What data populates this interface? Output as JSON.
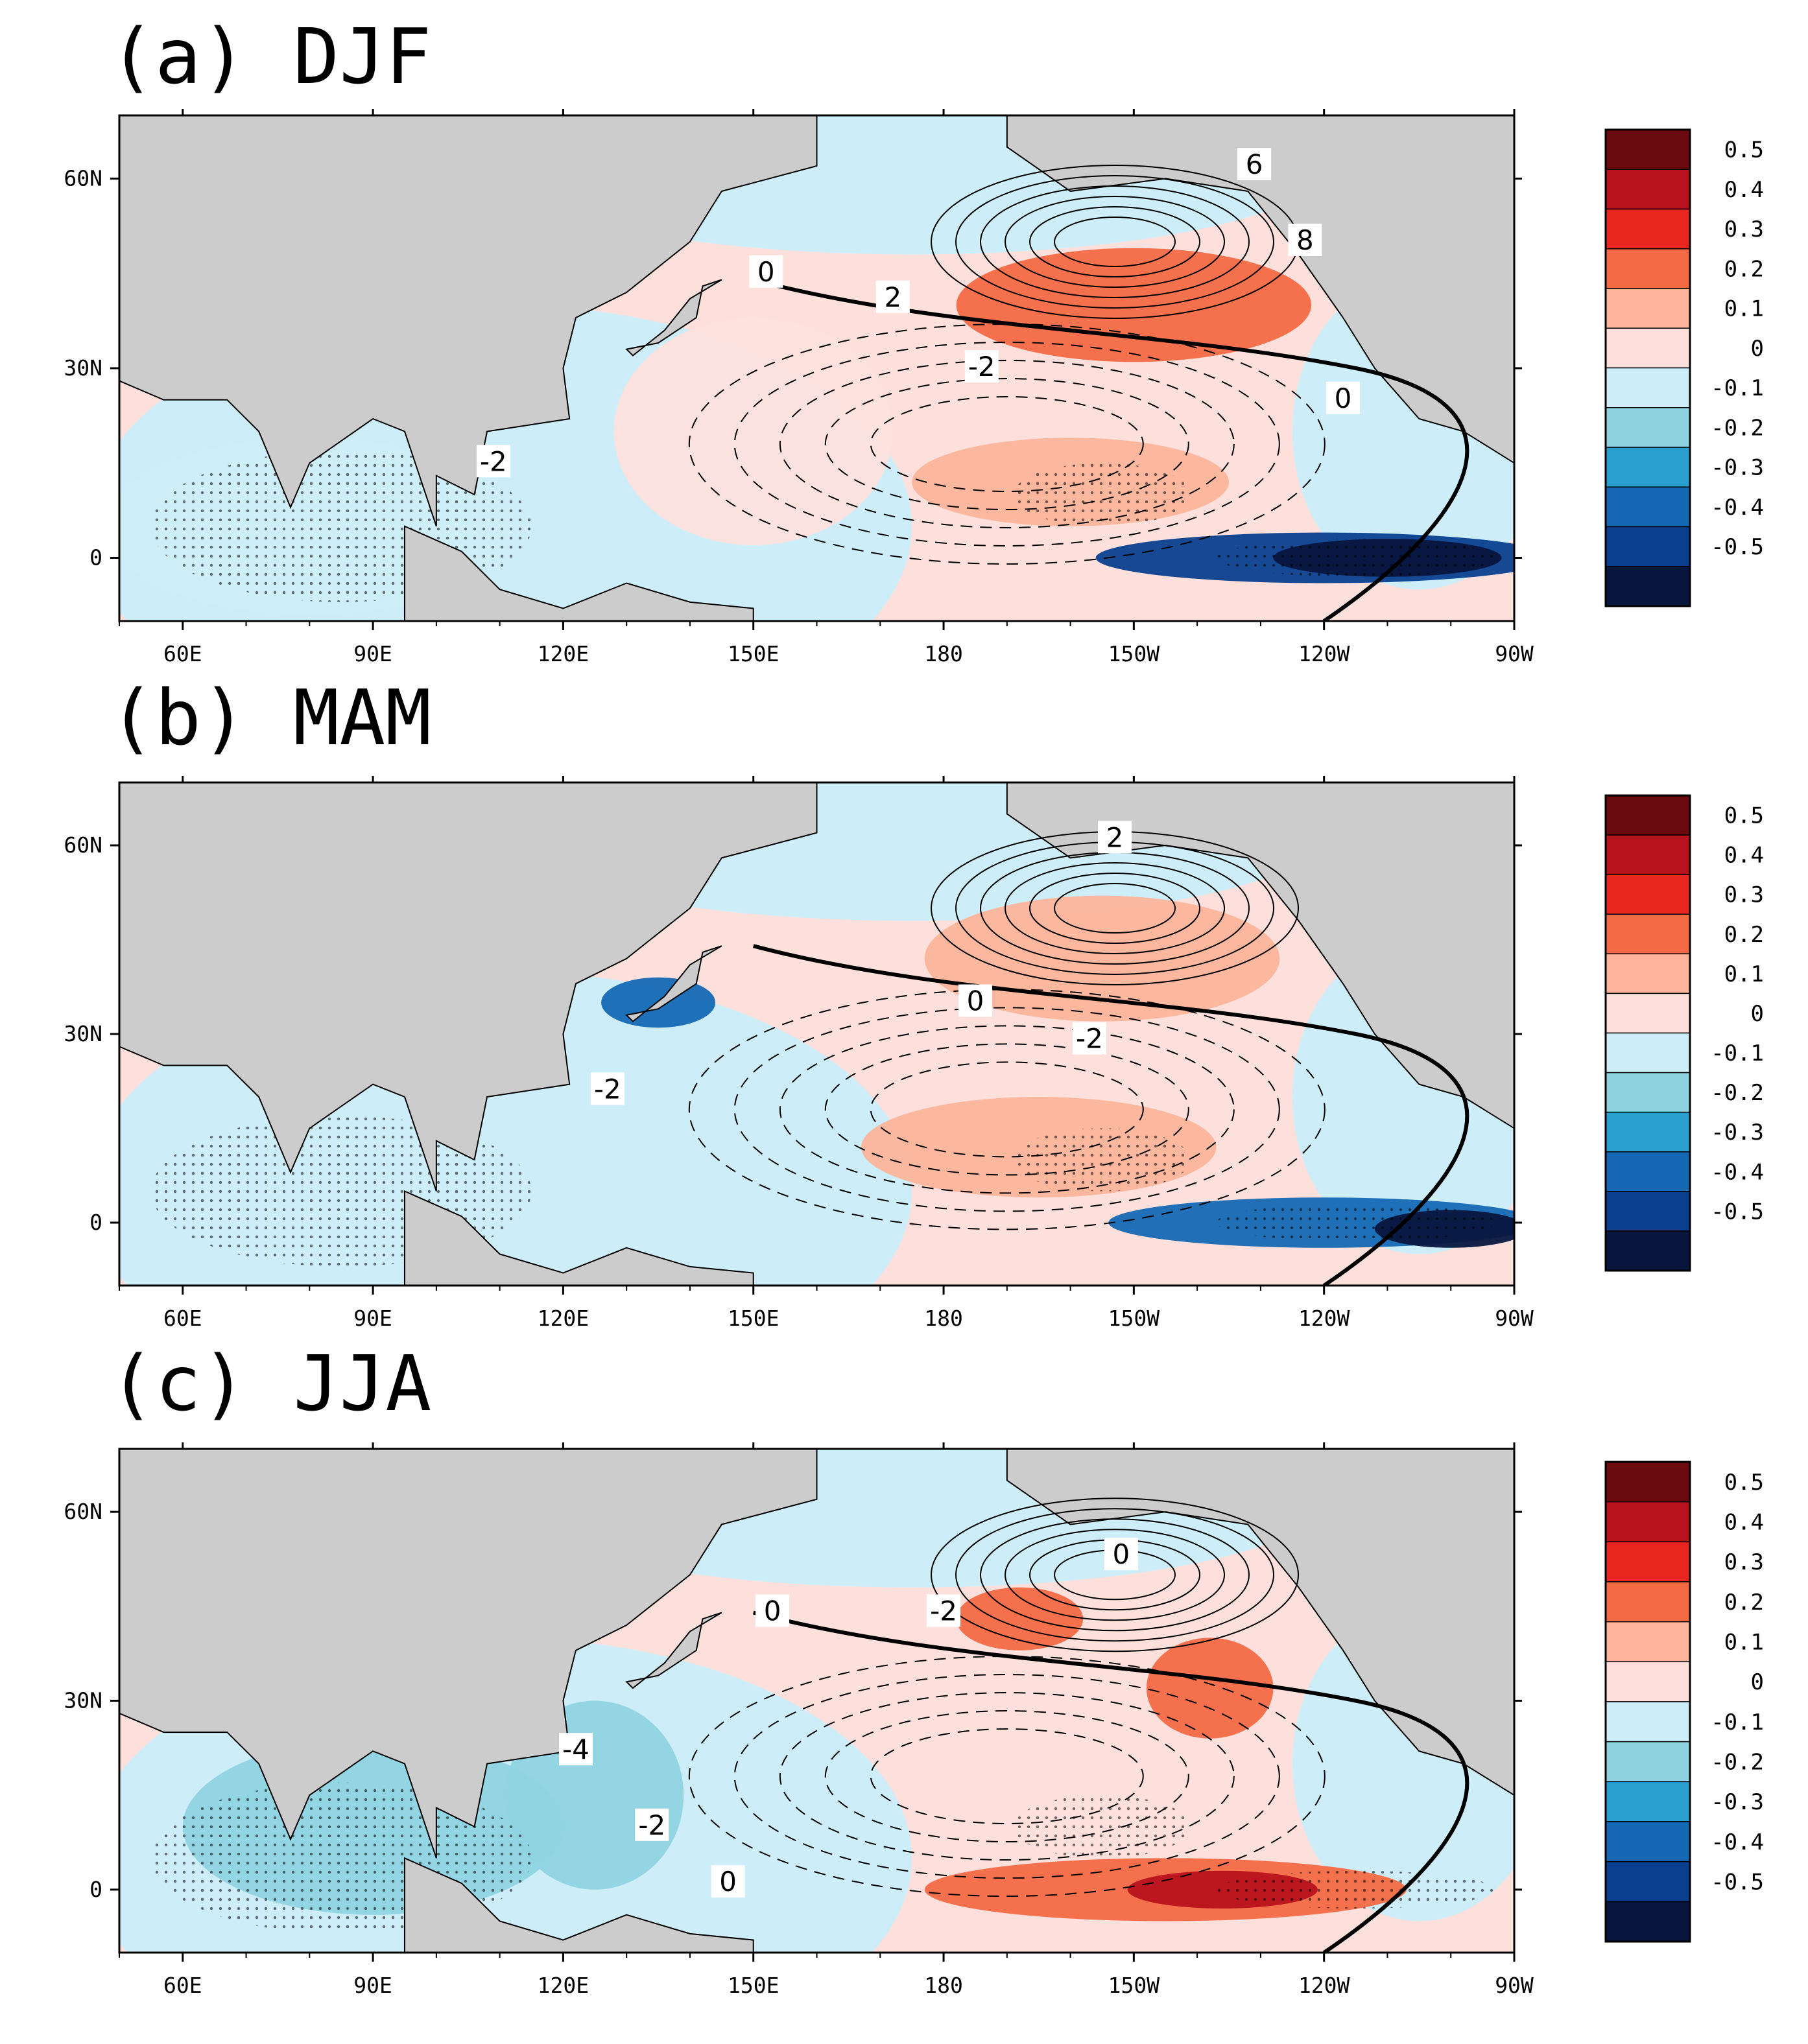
{
  "figure": {
    "panels_count": 3
  },
  "chart_data": [
    {
      "type": "heatmap",
      "title": "(a) DJF",
      "season": "DJF",
      "x_axis": {
        "range_deg": [
          50,
          270
        ],
        "tick_labels": [
          "60E",
          "90E",
          "120E",
          "150E",
          "180",
          "150W",
          "120W",
          "90W"
        ],
        "tick_values_deg": [
          60,
          90,
          120,
          150,
          180,
          210,
          240,
          270
        ]
      },
      "y_axis": {
        "range_deg": [
          -10,
          70
        ],
        "tick_labels": [
          "60N",
          "30N",
          "0"
        ],
        "tick_values_deg": [
          60,
          30,
          0
        ]
      },
      "shading_features": [
        {
          "lon": 210,
          "lat": 40,
          "rx": 28,
          "ry": 9,
          "value": 0.25
        },
        {
          "lon": 200,
          "lat": 12,
          "rx": 25,
          "ry": 7,
          "value": 0.1
        },
        {
          "lon": 240,
          "lat": 0,
          "rx": 36,
          "ry": 4,
          "value": -0.45
        },
        {
          "lon": 250,
          "lat": 0,
          "rx": 18,
          "ry": 3,
          "value": -0.55
        },
        {
          "lon": 80,
          "lat": 5,
          "rx": 32,
          "ry": 14,
          "value": -0.1
        },
        {
          "lon": 150,
          "lat": 20,
          "rx": 22,
          "ry": 18,
          "value": 0.05
        }
      ],
      "contours": [
        {
          "label": "0",
          "lon": 152,
          "lat": 45
        },
        {
          "label": "2",
          "lon": 172,
          "lat": 41
        },
        {
          "label": "-2",
          "lon": 186,
          "lat": 30
        },
        {
          "label": "0",
          "lon": 243,
          "lat": 25
        },
        {
          "label": "6",
          "lon": 229,
          "lat": 62
        },
        {
          "label": "8",
          "lon": 237,
          "lat": 50
        },
        {
          "label": "-2",
          "lon": 109,
          "lat": 15
        }
      ]
    },
    {
      "type": "heatmap",
      "title": "(b) MAM",
      "season": "MAM",
      "x_axis": {
        "range_deg": [
          50,
          270
        ],
        "tick_labels": [
          "60E",
          "90E",
          "120E",
          "150E",
          "180",
          "150W",
          "120W",
          "90W"
        ],
        "tick_values_deg": [
          60,
          90,
          120,
          150,
          180,
          210,
          240,
          270
        ]
      },
      "y_axis": {
        "range_deg": [
          -10,
          70
        ],
        "tick_labels": [
          "60N",
          "30N",
          "0"
        ],
        "tick_values_deg": [
          60,
          30,
          0
        ]
      },
      "shading_features": [
        {
          "lon": 205,
          "lat": 42,
          "rx": 28,
          "ry": 10,
          "value": 0.15
        },
        {
          "lon": 195,
          "lat": 12,
          "rx": 28,
          "ry": 8,
          "value": 0.12
        },
        {
          "lon": 240,
          "lat": 0,
          "rx": 34,
          "ry": 4,
          "value": -0.4
        },
        {
          "lon": 260,
          "lat": -1,
          "rx": 12,
          "ry": 3,
          "value": -0.55
        },
        {
          "lon": 135,
          "lat": 35,
          "rx": 9,
          "ry": 4,
          "value": -0.35
        }
      ],
      "contours": [
        {
          "label": "2",
          "lon": 207,
          "lat": 61
        },
        {
          "label": "0",
          "lon": 185,
          "lat": 35
        },
        {
          "label": "-2",
          "lon": 203,
          "lat": 29
        },
        {
          "label": "-2",
          "lon": 127,
          "lat": 21
        }
      ]
    },
    {
      "type": "heatmap",
      "title": "(c) JJA",
      "season": "JJA",
      "x_axis": {
        "range_deg": [
          50,
          270
        ],
        "tick_labels": [
          "60E",
          "90E",
          "120E",
          "150E",
          "180",
          "150W",
          "120W",
          "90W"
        ],
        "tick_values_deg": [
          60,
          90,
          120,
          150,
          180,
          210,
          240,
          270
        ]
      },
      "y_axis": {
        "range_deg": [
          -10,
          70
        ],
        "tick_labels": [
          "60N",
          "30N",
          "0"
        ],
        "tick_values_deg": [
          60,
          30,
          0
        ]
      },
      "shading_features": [
        {
          "lon": 192,
          "lat": 43,
          "rx": 10,
          "ry": 5,
          "value": 0.25
        },
        {
          "lon": 222,
          "lat": 32,
          "rx": 10,
          "ry": 8,
          "value": 0.25
        },
        {
          "lon": 215,
          "lat": 0,
          "rx": 38,
          "ry": 5,
          "value": 0.25
        },
        {
          "lon": 224,
          "lat": 0,
          "rx": 15,
          "ry": 3,
          "value": 0.4
        },
        {
          "lon": 90,
          "lat": 10,
          "rx": 30,
          "ry": 14,
          "value": -0.12
        },
        {
          "lon": 125,
          "lat": 15,
          "rx": 14,
          "ry": 15,
          "value": -0.18
        }
      ],
      "contours": [
        {
          "label": "0",
          "lon": 153,
          "lat": 44
        },
        {
          "label": "-2",
          "lon": 180,
          "lat": 44
        },
        {
          "label": "0",
          "lon": 208,
          "lat": 53
        },
        {
          "label": "-4",
          "lon": 122,
          "lat": 22
        },
        {
          "label": "-2",
          "lon": 134,
          "lat": 10
        },
        {
          "label": "0",
          "lon": 146,
          "lat": 1
        }
      ]
    }
  ],
  "legend": {
    "tick_labels": [
      "0.5",
      "0.4",
      "0.3",
      "0.2",
      "0.1",
      "0",
      "-0.1",
      "-0.2",
      "-0.3",
      "-0.4",
      "-0.5"
    ],
    "colors": [
      "#6b0a0f",
      "#b8121c",
      "#e8251f",
      "#f46a44",
      "#fcb49b",
      "#fde0dc",
      "#cdeef8",
      "#8fd3e0",
      "#2aa0cf",
      "#1468b4",
      "#0a3f8f",
      "#08163e"
    ],
    "land_color": "#cccccc",
    "ocean_default": "#fde0dc"
  }
}
